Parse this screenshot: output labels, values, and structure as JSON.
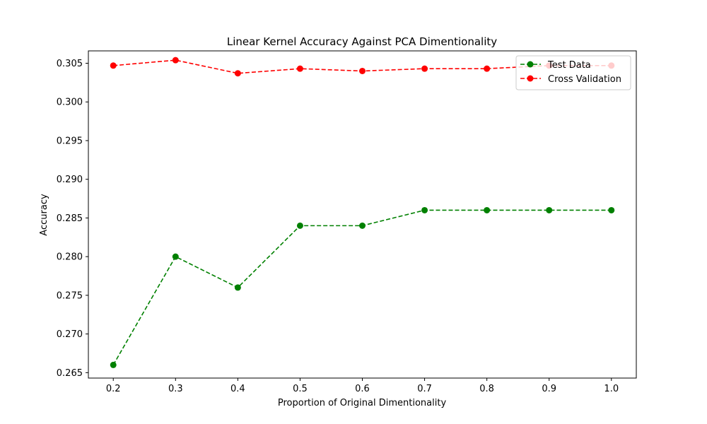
{
  "chart_data": {
    "type": "line",
    "title": "Linear Kernel Accuracy Against PCA Dimentionality",
    "xlabel": "Proportion of Original Dimentionality",
    "ylabel": "Accuracy",
    "x": [
      0.2,
      0.3,
      0.4,
      0.5,
      0.6,
      0.7,
      0.8,
      0.9,
      1.0
    ],
    "xticks": [
      "0.2",
      "0.3",
      "0.4",
      "0.5",
      "0.6",
      "0.7",
      "0.8",
      "0.9",
      "1.0"
    ],
    "xlim": [
      0.16,
      1.04
    ],
    "yticks": [
      "0.265",
      "0.270",
      "0.275",
      "0.280",
      "0.285",
      "0.290",
      "0.295",
      "0.300",
      "0.305"
    ],
    "ylim": [
      0.2643,
      0.3066
    ],
    "grid": false,
    "legend_position": "upper right",
    "series": [
      {
        "name": "Test Data",
        "color": "#008000",
        "linestyle": "dashed",
        "marker": "circle",
        "values": [
          0.266,
          0.28,
          0.276,
          0.284,
          0.284,
          0.286,
          0.286,
          0.286,
          0.286
        ]
      },
      {
        "name": "Cross Validation",
        "color": "#ff0000",
        "linestyle": "dashed",
        "marker": "circle",
        "values": [
          0.3047,
          0.3054,
          0.3037,
          0.3043,
          0.304,
          0.3043,
          0.3043,
          0.3047,
          0.3047
        ]
      }
    ]
  }
}
